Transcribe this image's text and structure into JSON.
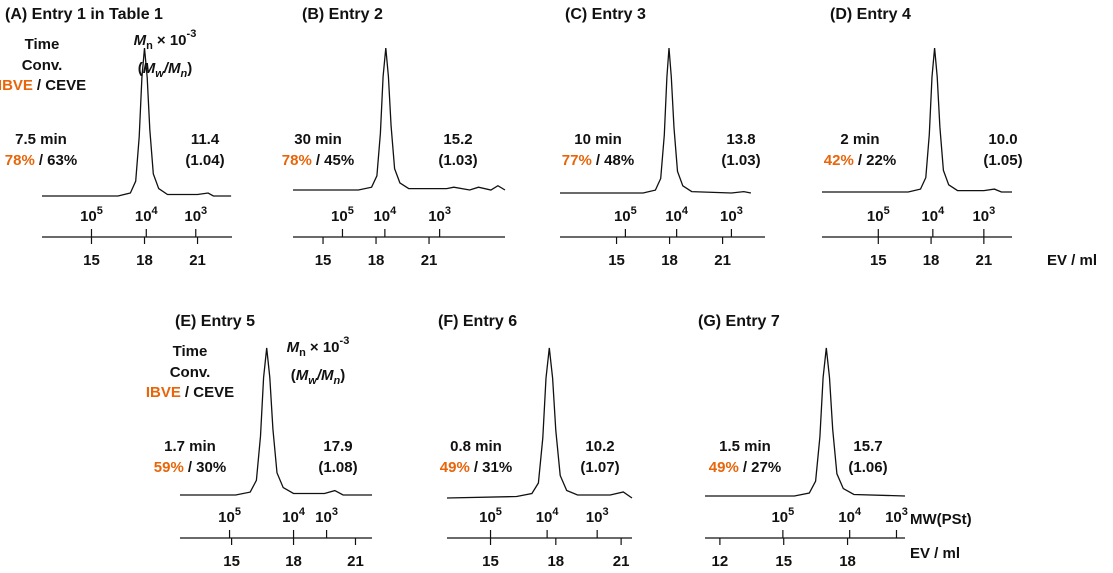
{
  "header": {
    "time": "Time",
    "conv": "Conv.",
    "ibve": "IBVE",
    "ceve": "/ CEVE",
    "mn": {
      "symbol": "M",
      "subscript": "n",
      "times": "× 10",
      "exponent": "-3"
    },
    "dispersity": {
      "open": "(",
      "m1": "M",
      "s1": "w",
      "slash": "/",
      "m2": "M",
      "s2": "n",
      "close": ")"
    }
  },
  "chart_data": [
    {
      "type": "line",
      "title": "(A) Entry 1 in Table 1",
      "show_header": true,
      "time": "7.5 min",
      "conv_ibve": "78%",
      "conv_ceve": "/ 63%",
      "mn": "11.4",
      "dispersity": "(1.04)",
      "xlim": [
        12.2,
        22.95
      ],
      "xticks": [
        15,
        18,
        21
      ],
      "ylim": [
        0,
        100
      ],
      "mw_ticks": [
        {
          "value": 100000,
          "label": "10",
          "exponent": "5",
          "ev": 15.0
        },
        {
          "value": 10000,
          "label": "10",
          "exponent": "4",
          "ev": 18.1
        },
        {
          "value": 1000,
          "label": "10",
          "exponent": "3",
          "ev": 20.9
        }
      ],
      "x": [
        12.2,
        16.5,
        17.2,
        17.5,
        17.7,
        17.85,
        18.0,
        18.15,
        18.3,
        18.5,
        18.8,
        19.3,
        21.0,
        21.6,
        21.9,
        22.9
      ],
      "values": [
        0,
        0,
        2,
        10,
        40,
        80,
        100,
        80,
        45,
        15,
        5,
        1,
        1,
        2,
        0,
        0
      ],
      "color": "#111111"
    },
    {
      "type": "line",
      "title": "(B) Entry 2",
      "show_header": false,
      "time": "30 min",
      "conv_ibve": "78%",
      "conv_ceve": "/ 45%",
      "mn": "15.2",
      "dispersity": "(1.03)",
      "xlim": [
        13.3,
        25.3
      ],
      "xticks": [
        15,
        18,
        21
      ],
      "ylim": [
        0,
        100
      ],
      "mw_ticks": [
        {
          "value": 100000,
          "label": "10",
          "exponent": "5",
          "ev": 16.1
        },
        {
          "value": 10000,
          "label": "10",
          "exponent": "4",
          "ev": 18.5
        },
        {
          "value": 1000,
          "label": "10",
          "exponent": "3",
          "ev": 21.6
        }
      ],
      "x": [
        13.3,
        17.0,
        17.75,
        18.05,
        18.25,
        18.4,
        18.55,
        18.7,
        18.85,
        19.05,
        19.35,
        19.85,
        22.0,
        22.4,
        23.3,
        23.8,
        24.5,
        24.9,
        25.3
      ],
      "values": [
        0,
        0,
        2,
        10,
        40,
        80,
        100,
        80,
        45,
        15,
        5,
        1,
        1,
        2,
        0,
        2,
        0,
        3,
        0
      ],
      "color": "#111111"
    },
    {
      "type": "line",
      "title": "(C) Entry 3",
      "show_header": false,
      "time": "10 min",
      "conv_ibve": "77%",
      "conv_ceve": "/ 48%",
      "mn": "13.8",
      "dispersity": "(1.03)",
      "xlim": [
        11.8,
        23.4
      ],
      "xticks": [
        15,
        18,
        21
      ],
      "ylim": [
        0,
        100
      ],
      "mw_ticks": [
        {
          "value": 100000,
          "label": "10",
          "exponent": "5",
          "ev": 15.5
        },
        {
          "value": 10000,
          "label": "10",
          "exponent": "4",
          "ev": 18.4
        },
        {
          "value": 1000,
          "label": "10",
          "exponent": "3",
          "ev": 21.5
        }
      ],
      "x": [
        11.8,
        16.5,
        17.2,
        17.5,
        17.7,
        17.85,
        17.97,
        18.1,
        18.25,
        18.45,
        18.75,
        19.25,
        21.5,
        22.2,
        22.6
      ],
      "values": [
        0,
        0,
        2,
        10,
        40,
        80,
        100,
        80,
        45,
        15,
        5,
        1,
        0,
        1,
        0
      ],
      "color": "#111111"
    },
    {
      "type": "line",
      "title": "(D) Entry 4",
      "show_header": false,
      "xlabel": "EV / ml",
      "time": "2 min",
      "conv_ibve": "42%",
      "conv_ceve": "/ 22%",
      "mn": "10.0",
      "dispersity": "(1.05)",
      "xlim": [
        11.8,
        22.6
      ],
      "xticks": [
        15,
        18,
        21
      ],
      "ylim": [
        0,
        100
      ],
      "mw_ticks": [
        {
          "value": 100000,
          "label": "10",
          "exponent": "5",
          "ev": 15.0
        },
        {
          "value": 10000,
          "label": "10",
          "exponent": "4",
          "ev": 18.1
        },
        {
          "value": 1000,
          "label": "10",
          "exponent": "3",
          "ev": 21.0
        }
      ],
      "x": [
        11.8,
        16.7,
        17.4,
        17.7,
        17.9,
        18.05,
        18.2,
        18.35,
        18.5,
        18.7,
        19.0,
        19.5,
        21.0,
        21.6,
        22.0,
        22.6
      ],
      "values": [
        0,
        0,
        2,
        10,
        40,
        80,
        100,
        80,
        45,
        15,
        5,
        1,
        1,
        2,
        0,
        0
      ],
      "color": "#111111"
    },
    {
      "type": "line",
      "title": "(E) Entry 5",
      "show_header": true,
      "time": "1.7 min",
      "conv_ibve": "59%",
      "conv_ceve": "/ 30%",
      "mn": "17.9",
      "dispersity": "(1.08)",
      "xlim": [
        12.5,
        21.8
      ],
      "xticks": [
        15,
        18,
        21
      ],
      "ylim": [
        0,
        100
      ],
      "mw_ticks": [
        {
          "value": 100000,
          "label": "10",
          "exponent": "5",
          "ev": 14.9
        },
        {
          "value": 10000,
          "label": "10",
          "exponent": "4",
          "ev": 18.0
        },
        {
          "value": 1000,
          "label": "10",
          "exponent": "3",
          "ev": 19.6
        }
      ],
      "x": [
        12.5,
        15.2,
        15.9,
        16.2,
        16.4,
        16.55,
        16.7,
        16.85,
        17.0,
        17.2,
        17.5,
        18.0,
        19.5,
        20.0,
        20.4,
        21.8
      ],
      "values": [
        0,
        0,
        2,
        10,
        40,
        80,
        100,
        80,
        45,
        15,
        5,
        1,
        1,
        3,
        0,
        0
      ],
      "color": "#111111"
    },
    {
      "type": "line",
      "title": "(F) Entry 6",
      "show_header": false,
      "time": "0.8 min",
      "conv_ibve": "49%",
      "conv_ceve": "/ 31%",
      "mn": "10.2",
      "dispersity": "(1.07)",
      "xlim": [
        13.0,
        21.5
      ],
      "xticks": [
        15,
        18,
        21
      ],
      "ylim": [
        0,
        100
      ],
      "mw_ticks": [
        {
          "value": 100000,
          "label": "10",
          "exponent": "5",
          "ev": 15.0
        },
        {
          "value": 10000,
          "label": "10",
          "exponent": "4",
          "ev": 17.6
        },
        {
          "value": 1000,
          "label": "10",
          "exponent": "3",
          "ev": 19.9
        }
      ],
      "x": [
        13.0,
        16.2,
        16.9,
        17.2,
        17.4,
        17.55,
        17.7,
        17.85,
        18.0,
        18.2,
        18.5,
        19.0,
        20.5,
        21.1,
        21.5
      ],
      "values": [
        0,
        1,
        3,
        10,
        40,
        80,
        100,
        80,
        45,
        15,
        5,
        2,
        2,
        4,
        0
      ],
      "color": "#111111"
    },
    {
      "type": "line",
      "title": "(G) Entry 7",
      "show_header": false,
      "xlabel": "EV / ml",
      "mwlabel": "MW(PSt)",
      "time": "1.5 min",
      "conv_ibve": "49%",
      "conv_ceve": "/ 27%",
      "mn": "15.7",
      "dispersity": "(1.06)",
      "xlim": [
        11.3,
        20.7
      ],
      "xticks": [
        12,
        15,
        18
      ],
      "ylim": [
        0,
        100
      ],
      "mw_ticks": [
        {
          "value": 100000,
          "label": "10",
          "exponent": "5",
          "ev": 14.96
        },
        {
          "value": 10000,
          "label": "10",
          "exponent": "4",
          "ev": 18.1
        },
        {
          "value": 1000,
          "label": "10",
          "exponent": "3",
          "ev": 20.3
        }
      ],
      "x": [
        11.3,
        15.5,
        16.2,
        16.5,
        16.7,
        16.85,
        17.0,
        17.15,
        17.3,
        17.5,
        17.8,
        18.3,
        20.7
      ],
      "values": [
        0,
        0,
        2,
        10,
        40,
        80,
        100,
        80,
        45,
        15,
        5,
        1,
        0
      ],
      "color": "#111111"
    }
  ]
}
